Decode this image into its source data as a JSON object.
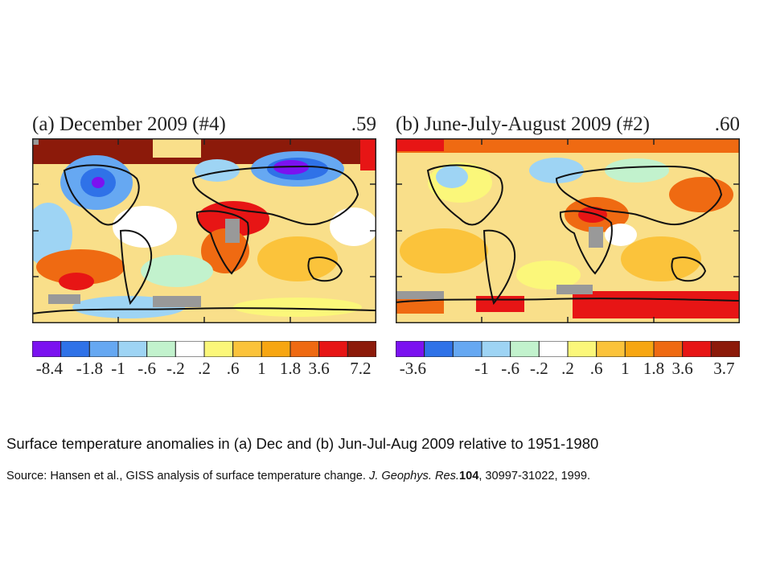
{
  "panels": [
    {
      "title": "(a) December 2009 (#4)",
      "mean_value": ".59",
      "legend_ticks": [
        "-8.4",
        "-1.8",
        "-1",
        "-.6",
        "-.2",
        ".2",
        ".6",
        "1",
        "1.8",
        "3.6",
        "7.2"
      ]
    },
    {
      "title": "(b) June-July-August 2009 (#2)",
      "mean_value": ".60",
      "legend_ticks": [
        "-3.6",
        "",
        "-1",
        "-.6",
        "-.2",
        ".2",
        ".6",
        "1",
        "1.8",
        "3.6",
        "3.7"
      ]
    }
  ],
  "legend_colors": [
    "#7b12f0",
    "#2f72e8",
    "#66a8f2",
    "#9ed4f4",
    "#c2f2cd",
    "#ffffff",
    "#fbf77a",
    "#fbc33b",
    "#f7a612",
    "#ef6a12",
    "#e71515",
    "#8c1a0a"
  ],
  "map_colors": {
    "ocean_base": "#f9df8a",
    "land_outline": "#111111",
    "missing": "#999999"
  },
  "caption": "Surface temperature anomalies in (a) Dec and (b) Jun-Jul-Aug 2009 relative to 1951-1980",
  "source": {
    "prefix": "Source: Hansen et al., GISS analysis of surface temperature change. ",
    "journal": "J. Geophys. Res.",
    "volume": "104",
    "rest": ", 30997-31022, 1999."
  }
}
